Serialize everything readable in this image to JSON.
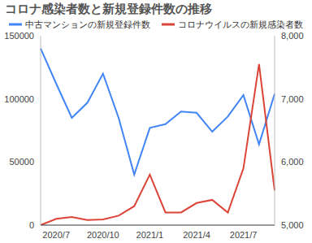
{
  "chart_data": {
    "type": "line",
    "title": "コロナ感染者数と新規登録件数の推移",
    "categories": [
      null,
      "2020/7",
      null,
      null,
      "2020/10",
      null,
      null,
      "2021/1",
      null,
      null,
      "2021/4",
      null,
      null,
      "2021/7",
      null,
      null
    ],
    "series": [
      {
        "name": "中古マンションの新規登録件数",
        "color": "#4285f4",
        "axis": "y",
        "values": [
          140000,
          112000,
          85000,
          97000,
          120000,
          85000,
          40000,
          77000,
          80000,
          90000,
          89000,
          74000,
          86000,
          103000,
          64000,
          104000
        ]
      },
      {
        "name": "コロナウイルスの新規感染者数",
        "color": "#db4437",
        "axis": "y2",
        "values": [
          5000,
          5100,
          5130,
          5080,
          5090,
          5150,
          5300,
          5800,
          5200,
          5200,
          5350,
          5400,
          5200,
          5900,
          7550,
          5550
        ]
      }
    ],
    "ylim": [
      0,
      150000
    ],
    "yticks": [
      0,
      50000,
      100000,
      150000
    ],
    "y2lim": [
      5000,
      8000
    ],
    "y2ticks": [
      {
        "value": 5000,
        "label": "5,000"
      },
      {
        "value": 6000,
        "label": "6,000"
      },
      {
        "value": 7000,
        "label": "7,000"
      },
      {
        "value": 8000,
        "label": "8,000"
      }
    ],
    "grid": false,
    "legend": "top"
  }
}
